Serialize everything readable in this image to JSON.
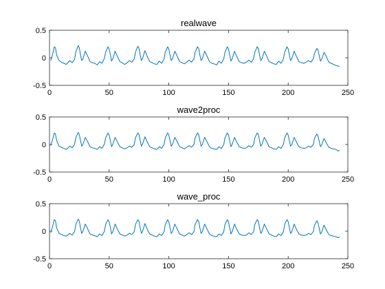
{
  "figure": {
    "background": "#ffffff",
    "line_color": "#0072BD"
  },
  "chart_data": [
    {
      "type": "line",
      "title": "realwave",
      "xlabel": "",
      "ylabel": "",
      "xlim": [
        0,
        250
      ],
      "ylim": [
        -0.5,
        0.5
      ],
      "xticks": [
        0,
        50,
        100,
        150,
        200,
        250
      ],
      "yticks": [
        -0.5,
        0,
        0.5
      ],
      "xtick_labels": [
        "0",
        "50",
        "100",
        "150",
        "200",
        "250"
      ],
      "ytick_labels": [
        "-0.5",
        "0",
        "0.5"
      ],
      "grid": false,
      "series": [
        {
          "color": "#0072BD",
          "x": [
            1,
            3,
            4,
            5,
            6,
            8,
            10,
            12,
            14,
            17,
            19,
            21,
            22,
            24,
            25,
            26,
            27,
            28,
            30,
            32,
            34,
            36,
            38,
            40,
            42,
            44,
            46,
            47,
            49,
            50,
            51,
            52,
            53,
            55,
            57,
            59,
            61,
            63,
            65,
            67,
            69,
            71,
            72,
            74,
            75,
            76,
            77,
            78,
            80,
            82,
            84,
            86,
            88,
            90,
            92,
            94,
            96,
            97,
            99,
            100,
            101,
            102,
            103,
            105,
            107,
            109,
            111,
            113,
            115,
            117,
            119,
            121,
            122,
            124,
            125,
            126,
            127,
            128,
            130,
            132,
            134,
            136,
            138,
            140,
            142,
            144,
            146,
            147,
            149,
            150,
            151,
            152,
            153,
            155,
            157,
            159,
            161,
            163,
            165,
            167,
            169,
            171,
            172,
            174,
            175,
            176,
            177,
            178,
            180,
            182,
            184,
            186,
            188,
            190,
            192,
            194,
            196,
            197,
            199,
            200,
            201,
            202,
            203,
            205,
            207,
            209,
            211,
            213,
            215,
            217,
            219,
            221,
            222,
            224,
            225,
            226,
            227,
            228,
            230,
            232,
            234,
            236,
            238,
            240,
            242,
            243
          ],
          "y": [
            -0.05,
            0.1,
            0.2,
            0.18,
            0.05,
            -0.05,
            -0.08,
            -0.1,
            -0.12,
            -0.05,
            -0.09,
            -0.03,
            0.1,
            0.22,
            0.18,
            0.05,
            -0.05,
            -0.02,
            0.12,
            0.03,
            -0.07,
            -0.09,
            -0.1,
            -0.13,
            -0.07,
            -0.1,
            -0.01,
            0.1,
            0.2,
            0.16,
            0.06,
            -0.06,
            -0.02,
            0.12,
            0.02,
            -0.07,
            -0.09,
            -0.12,
            -0.09,
            -0.05,
            -0.08,
            -0.02,
            0.1,
            0.21,
            0.17,
            0.05,
            -0.05,
            -0.01,
            0.13,
            0.02,
            -0.07,
            -0.09,
            -0.11,
            -0.12,
            -0.06,
            -0.1,
            -0.02,
            0.1,
            0.2,
            0.16,
            0.05,
            -0.05,
            -0.02,
            0.12,
            0.03,
            -0.07,
            -0.09,
            -0.11,
            -0.08,
            -0.04,
            -0.08,
            -0.02,
            0.1,
            0.2,
            0.17,
            0.05,
            -0.05,
            -0.02,
            0.12,
            0.03,
            -0.07,
            -0.1,
            -0.11,
            -0.13,
            -0.06,
            -0.1,
            -0.02,
            0.1,
            0.2,
            0.16,
            0.05,
            -0.06,
            -0.02,
            0.12,
            0.02,
            -0.07,
            -0.09,
            -0.1,
            -0.08,
            -0.04,
            -0.08,
            -0.02,
            0.1,
            0.2,
            0.17,
            0.05,
            -0.05,
            -0.02,
            0.12,
            0.03,
            -0.07,
            -0.09,
            -0.11,
            -0.12,
            -0.06,
            -0.1,
            -0.02,
            0.1,
            0.2,
            0.16,
            0.05,
            -0.05,
            -0.02,
            0.12,
            0.02,
            -0.07,
            -0.09,
            -0.1,
            -0.08,
            -0.05,
            -0.08,
            -0.02,
            0.08,
            0.17,
            0.14,
            0.04,
            -0.06,
            -0.03,
            0.1,
            0.02,
            -0.08,
            -0.1,
            -0.12,
            -0.14,
            -0.15,
            -0.16
          ]
        }
      ]
    },
    {
      "type": "line",
      "title": "wave2proc",
      "xlabel": "",
      "ylabel": "",
      "xlim": [
        0,
        250
      ],
      "ylim": [
        -0.5,
        0.5
      ],
      "xticks": [
        0,
        50,
        100,
        150,
        200,
        250
      ],
      "yticks": [
        -0.5,
        0,
        0.5
      ],
      "xtick_labels": [
        "0",
        "50",
        "100",
        "150",
        "200",
        "250"
      ],
      "ytick_labels": [
        "-0.5",
        "0",
        "0.5"
      ],
      "grid": false,
      "series": [
        {
          "color": "#0072BD",
          "x": [
            1,
            3,
            4,
            5,
            6,
            8,
            10,
            12,
            14,
            17,
            19,
            21,
            22,
            24,
            25,
            26,
            27,
            28,
            30,
            32,
            34,
            36,
            38,
            40,
            42,
            44,
            46,
            47,
            49,
            50,
            51,
            52,
            53,
            55,
            57,
            59,
            61,
            63,
            65,
            67,
            69,
            71,
            72,
            74,
            75,
            76,
            77,
            78,
            80,
            82,
            84,
            86,
            88,
            90,
            92,
            94,
            96,
            97,
            99,
            100,
            101,
            102,
            103,
            105,
            107,
            109,
            111,
            113,
            115,
            117,
            119,
            121,
            122,
            124,
            125,
            126,
            127,
            128,
            130,
            132,
            134,
            136,
            138,
            140,
            142,
            144,
            146,
            147,
            149,
            150,
            151,
            152,
            153,
            155,
            157,
            159,
            161,
            163,
            165,
            167,
            169,
            171,
            172,
            174,
            175,
            176,
            177,
            178,
            180,
            182,
            184,
            186,
            188,
            190,
            192,
            194,
            196,
            197,
            199,
            200,
            201,
            202,
            203,
            205,
            207,
            209,
            211,
            213,
            215,
            217,
            219,
            221,
            222,
            224,
            225,
            226,
            227,
            228,
            230,
            232,
            234,
            236,
            238,
            240,
            242,
            243
          ],
          "y": [
            -0.02,
            0.12,
            0.21,
            0.19,
            0.07,
            -0.03,
            -0.05,
            -0.07,
            -0.09,
            -0.03,
            -0.06,
            0,
            0.12,
            0.22,
            0.18,
            0.07,
            -0.03,
            0,
            0.13,
            0.05,
            -0.04,
            -0.06,
            -0.07,
            -0.09,
            -0.04,
            -0.07,
            0.01,
            0.12,
            0.21,
            0.17,
            0.07,
            -0.04,
            0,
            0.13,
            0.04,
            -0.04,
            -0.06,
            -0.08,
            -0.06,
            -0.03,
            -0.05,
            0,
            0.12,
            0.21,
            0.18,
            0.07,
            -0.03,
            0.01,
            0.14,
            0.04,
            -0.04,
            -0.06,
            -0.08,
            -0.09,
            -0.04,
            -0.07,
            0,
            0.12,
            0.21,
            0.17,
            0.07,
            -0.03,
            0,
            0.13,
            0.05,
            -0.04,
            -0.06,
            -0.08,
            -0.05,
            -0.02,
            -0.05,
            0,
            0.12,
            0.21,
            0.18,
            0.07,
            -0.03,
            0,
            0.13,
            0.05,
            -0.04,
            -0.07,
            -0.08,
            -0.09,
            -0.04,
            -0.07,
            0,
            0.12,
            0.21,
            0.17,
            0.07,
            -0.04,
            0,
            0.13,
            0.04,
            -0.04,
            -0.06,
            -0.07,
            -0.06,
            -0.02,
            -0.05,
            0,
            0.12,
            0.21,
            0.18,
            0.07,
            -0.03,
            0,
            0.13,
            0.05,
            -0.04,
            -0.06,
            -0.08,
            -0.09,
            -0.04,
            -0.07,
            0,
            0.12,
            0.21,
            0.17,
            0.07,
            -0.03,
            0,
            0.13,
            0.04,
            -0.04,
            -0.06,
            -0.07,
            -0.06,
            -0.03,
            -0.05,
            0,
            0.11,
            0.19,
            0.15,
            0.06,
            -0.04,
            -0.01,
            0.11,
            0.03,
            -0.05,
            -0.07,
            -0.08,
            -0.09,
            -0.12,
            -0.1
          ]
        }
      ]
    },
    {
      "type": "line",
      "title": "wave_proc",
      "xlabel": "",
      "ylabel": "",
      "xlim": [
        0,
        250
      ],
      "ylim": [
        -0.5,
        0.5
      ],
      "xticks": [
        0,
        50,
        100,
        150,
        200,
        250
      ],
      "yticks": [
        -0.5,
        0,
        0.5
      ],
      "xtick_labels": [
        "0",
        "50",
        "100",
        "150",
        "200",
        "250"
      ],
      "ytick_labels": [
        "-0.5",
        "0",
        "0.5"
      ],
      "grid": false,
      "series": [
        {
          "color": "#0072BD",
          "x": [
            1,
            3,
            4,
            5,
            6,
            8,
            10,
            12,
            14,
            17,
            19,
            21,
            22,
            24,
            25,
            26,
            27,
            28,
            30,
            32,
            34,
            36,
            38,
            40,
            42,
            44,
            46,
            47,
            49,
            50,
            51,
            52,
            53,
            55,
            57,
            59,
            61,
            63,
            65,
            67,
            69,
            71,
            72,
            74,
            75,
            76,
            77,
            78,
            80,
            82,
            84,
            86,
            88,
            90,
            92,
            94,
            96,
            97,
            99,
            100,
            101,
            102,
            103,
            105,
            107,
            109,
            111,
            113,
            115,
            117,
            119,
            121,
            122,
            124,
            125,
            126,
            127,
            128,
            130,
            132,
            134,
            136,
            138,
            140,
            142,
            144,
            146,
            147,
            149,
            150,
            151,
            152,
            153,
            155,
            157,
            159,
            161,
            163,
            165,
            167,
            169,
            171,
            172,
            174,
            175,
            176,
            177,
            178,
            180,
            182,
            184,
            186,
            188,
            190,
            192,
            194,
            196,
            197,
            199,
            200,
            201,
            202,
            203,
            205,
            207,
            209,
            211,
            213,
            215,
            217,
            219,
            221,
            222,
            224,
            225,
            226,
            227,
            228,
            230,
            232,
            234,
            236,
            238,
            240,
            242,
            243
          ],
          "y": [
            -0.03,
            0.12,
            0.21,
            0.19,
            0.06,
            -0.04,
            -0.06,
            -0.08,
            -0.09,
            -0.04,
            -0.07,
            -0.01,
            0.12,
            0.22,
            0.18,
            0.06,
            -0.04,
            0,
            0.13,
            0.04,
            -0.05,
            -0.07,
            -0.08,
            -0.1,
            -0.05,
            -0.08,
            0,
            0.12,
            0.21,
            0.17,
            0.07,
            -0.05,
            -0.01,
            0.13,
            0.03,
            -0.05,
            -0.07,
            -0.09,
            -0.07,
            -0.04,
            -0.06,
            -0.01,
            0.12,
            0.21,
            0.18,
            0.06,
            -0.04,
            0,
            0.14,
            0.03,
            -0.05,
            -0.07,
            -0.09,
            -0.1,
            -0.05,
            -0.08,
            -0.01,
            0.12,
            0.21,
            0.17,
            0.06,
            -0.04,
            -0.01,
            0.13,
            0.04,
            -0.05,
            -0.07,
            -0.09,
            -0.06,
            -0.03,
            -0.06,
            -0.01,
            0.12,
            0.21,
            0.18,
            0.06,
            -0.04,
            -0.01,
            0.13,
            0.04,
            -0.05,
            -0.08,
            -0.09,
            -0.1,
            -0.05,
            -0.08,
            -0.01,
            0.12,
            0.21,
            0.17,
            0.06,
            -0.05,
            -0.01,
            0.13,
            0.03,
            -0.05,
            -0.07,
            -0.08,
            -0.07,
            -0.03,
            -0.06,
            -0.01,
            0.12,
            0.21,
            0.18,
            0.06,
            -0.04,
            -0.01,
            0.13,
            0.04,
            -0.05,
            -0.07,
            -0.09,
            -0.1,
            -0.05,
            -0.08,
            -0.01,
            0.12,
            0.21,
            0.17,
            0.06,
            -0.04,
            -0.01,
            0.13,
            0.03,
            -0.05,
            -0.07,
            -0.08,
            -0.07,
            -0.04,
            -0.06,
            -0.01,
            0.11,
            0.19,
            0.15,
            0.05,
            -0.05,
            -0.02,
            0.11,
            0.02,
            -0.06,
            -0.08,
            -0.09,
            -0.1,
            -0.12,
            -0.1
          ]
        }
      ]
    }
  ]
}
